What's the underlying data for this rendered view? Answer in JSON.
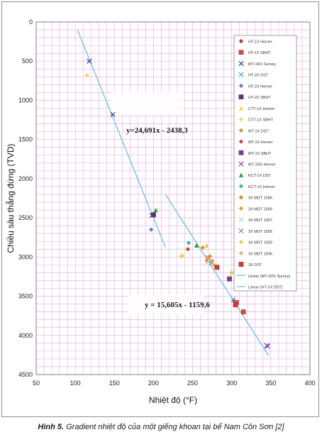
{
  "chart_data": {
    "type": "scatter",
    "xlabel": "Nhiệt độ (°F)",
    "ylabel": "Chiều sâu thẳng đứng (TVD)",
    "xlim": [
      50,
      400
    ],
    "ylim": [
      4500,
      0
    ],
    "y_inverted": true,
    "x_ticks": [
      50,
      100,
      150,
      200,
      250,
      300,
      350,
      400
    ],
    "y_ticks": [
      0,
      500,
      1000,
      1500,
      2000,
      2500,
      3000,
      3500,
      4000,
      4500
    ],
    "grid": true,
    "grid_color": "#e8a6e8",
    "legend_position": "right, inside plot",
    "trendlines": [
      {
        "name": "Linear (MT-1RX Survey)",
        "equation": "y=24,691x - 2438,3",
        "x_range": [
          103,
          215
        ],
        "color": "#74c6e0"
      },
      {
        "name": "Linear (HT-2X DST)",
        "equation": "y = 15,605x - 1159,6",
        "x_range": [
          215,
          347
        ],
        "color": "#74c6e0"
      }
    ],
    "series": [
      {
        "name": "HT-1X Horner",
        "color": "#d42a2a",
        "marker": "diamond",
        "points": [
          [
            303,
            3560
          ]
        ]
      },
      {
        "name": "HT-1X SBHT",
        "color": "#e04444",
        "marker": "square",
        "points": [
          [
            315,
            3700
          ],
          [
            306,
            3580
          ]
        ]
      },
      {
        "name": "MT-1RX Survey",
        "color": "#2a3f9a",
        "marker": "x",
        "points": [
          [
            118,
            500
          ],
          [
            148,
            1180
          ],
          [
            198,
            2470
          ],
          [
            345,
            4130
          ]
        ]
      },
      {
        "name": "HT-2X DST",
        "color": "#3aa8d8",
        "marker": "x",
        "points": [
          [
            302,
            3540
          ]
        ]
      },
      {
        "name": "HT-2X Horner",
        "color": "#5a7fc8",
        "marker": "diamond",
        "points": [
          [
            197,
            2650
          ]
        ]
      },
      {
        "name": "HT-2X SBHT",
        "color": "#6b2a8a",
        "marker": "square",
        "points": [
          [
            200,
            2460
          ]
        ]
      },
      {
        "name": "CTT-1X Horner",
        "color": "#e8e040",
        "marker": "triangle",
        "points": [
          [
            298,
            3250
          ]
        ]
      },
      {
        "name": "CTT-1X SBHT",
        "color": "#f0d878",
        "marker": "diamond",
        "points": [
          [
            115,
            680
          ],
          [
            237,
            2980
          ]
        ]
      },
      {
        "name": "MT-1X DST",
        "color": "#c89040",
        "marker": "diamond",
        "points": [
          [
            268,
            3050
          ]
        ]
      },
      {
        "name": "MT-1X Horner",
        "color": "#d04040",
        "marker": "diamond",
        "points": [
          [
            244,
            2900
          ]
        ]
      },
      {
        "name": "MT-1X SBHT",
        "color": "#7a3aa0",
        "marker": "square",
        "points": [
          [
            297,
            3280
          ]
        ]
      },
      {
        "name": "MT-1RX Horner",
        "color": "#a040a0",
        "marker": "x",
        "points": [
          [
            270,
            3010
          ],
          [
            346,
            4140
          ]
        ]
      },
      {
        "name": "KCT-1X DST",
        "color": "#30a040",
        "marker": "triangle",
        "points": [
          [
            203,
            2400
          ],
          [
            255,
            2850
          ]
        ]
      },
      {
        "name": "KCT-1X Horner",
        "color": "#40b8a8",
        "marker": "diamond",
        "points": [
          [
            245,
            2820
          ]
        ]
      },
      {
        "name": "3X MDT 1586",
        "color": "#e08a30",
        "marker": "diamond",
        "points": [
          [
            263,
            2880
          ],
          [
            272,
            2990
          ]
        ]
      },
      {
        "name": "3X MDT 1589",
        "color": "#e0a040",
        "marker": "diamond",
        "points": [
          [
            269,
            3020
          ],
          [
            275,
            3050
          ]
        ]
      },
      {
        "name": "3X MDT 1587",
        "color": "#c8c8c8",
        "marker": "x",
        "points": [
          [
            268,
            3070
          ],
          [
            283,
            3150
          ]
        ]
      },
      {
        "name": "3X MDT 1595",
        "color": "#8a8aa0",
        "marker": "x",
        "points": [
          [
            274,
            3080
          ],
          [
            304,
            3600
          ]
        ]
      },
      {
        "name": "3X MDT 1590",
        "color": "#e8d040",
        "marker": "diamond",
        "points": [
          [
            268,
            2860
          ],
          [
            236,
            2990
          ]
        ]
      },
      {
        "name": "3X MDT 1596",
        "color": "#d8c060",
        "marker": "diamond",
        "points": [
          [
            300,
            3200
          ],
          [
            277,
            3100
          ]
        ]
      },
      {
        "name": "3X DST",
        "color": "#e03030",
        "marker": "square",
        "points": [
          [
            281,
            3130
          ],
          [
            305,
            3610
          ]
        ]
      }
    ]
  },
  "caption": {
    "label": "Hình 5.",
    "text": "Gradient nhiệt độ của một giếng khoan tại bể Nam Côn Sơn [2]"
  }
}
